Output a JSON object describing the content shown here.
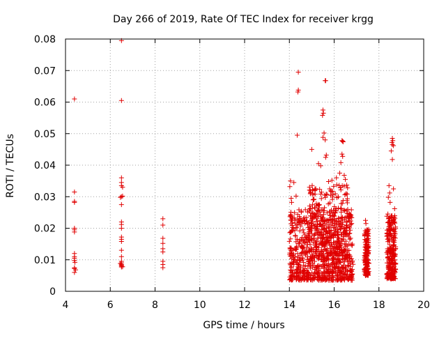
{
  "colors": {
    "points": "#e00000",
    "grid": "#a0a0a0",
    "axis": "#000000"
  },
  "chart_data": {
    "type": "scatter",
    "title": "Day 266 of 2019, Rate Of TEC Index for receiver krgg",
    "xlabel": "GPS time / hours",
    "ylabel": "ROTI / TECUs",
    "xlim": [
      4,
      20
    ],
    "ylim": [
      0,
      0.08
    ],
    "xticks": [
      4,
      6,
      8,
      10,
      12,
      14,
      16,
      18,
      20
    ],
    "xtick_labels": [
      "4",
      "6",
      "8",
      "10",
      "12",
      "14",
      "16",
      "18",
      "20"
    ],
    "yticks": [
      0,
      0.01,
      0.02,
      0.03,
      0.04,
      0.05,
      0.06,
      0.07,
      0.08
    ],
    "ytick_labels": [
      "0",
      "0.01",
      "0.02",
      "0.03",
      "0.04",
      "0.05",
      "0.06",
      "0.07",
      "0.08"
    ],
    "grid": true,
    "marker": "+",
    "series": [
      {
        "name": "ROTI",
        "points": [
          [
            4.4,
            0.061
          ],
          [
            4.4,
            0.0315
          ],
          [
            4.4,
            0.0285
          ],
          [
            4.4,
            0.0282
          ],
          [
            4.4,
            0.02
          ],
          [
            4.4,
            0.0195
          ],
          [
            4.4,
            0.0188
          ],
          [
            4.4,
            0.012
          ],
          [
            4.4,
            0.011
          ],
          [
            4.4,
            0.0105
          ],
          [
            4.4,
            0.0098
          ],
          [
            4.4,
            0.0075
          ],
          [
            4.4,
            0.0072
          ],
          [
            4.4,
            0.006
          ],
          [
            4.45,
            0.0068
          ],
          [
            4.42,
            0.0092
          ],
          [
            6.5,
            0.0795
          ],
          [
            6.5,
            0.0605
          ],
          [
            6.5,
            0.036
          ],
          [
            6.5,
            0.0345
          ],
          [
            6.5,
            0.0335
          ],
          [
            6.55,
            0.033
          ],
          [
            6.5,
            0.03
          ],
          [
            6.45,
            0.0298
          ],
          [
            6.55,
            0.0302
          ],
          [
            6.5,
            0.0275
          ],
          [
            6.5,
            0.022
          ],
          [
            6.5,
            0.0212
          ],
          [
            6.5,
            0.02
          ],
          [
            6.5,
            0.0172
          ],
          [
            6.5,
            0.0165
          ],
          [
            6.5,
            0.0158
          ],
          [
            6.5,
            0.013
          ],
          [
            6.5,
            0.011
          ],
          [
            6.5,
            0.0095
          ],
          [
            6.5,
            0.009
          ],
          [
            6.5,
            0.0085
          ],
          [
            6.5,
            0.0082
          ],
          [
            6.5,
            0.008
          ],
          [
            6.5,
            0.0077
          ],
          [
            6.45,
            0.0088
          ],
          [
            6.55,
            0.0078
          ],
          [
            8.35,
            0.023
          ],
          [
            8.35,
            0.021
          ],
          [
            8.35,
            0.0168
          ],
          [
            8.35,
            0.0152
          ],
          [
            8.35,
            0.0135
          ],
          [
            8.35,
            0.0125
          ],
          [
            8.35,
            0.0095
          ],
          [
            8.35,
            0.0085
          ],
          [
            8.35,
            0.0075
          ],
          [
            14.4,
            0.0695
          ],
          [
            14.4,
            0.0638
          ],
          [
            14.38,
            0.0632
          ],
          [
            14.35,
            0.0495
          ],
          [
            15.6,
            0.0668
          ],
          [
            15.62,
            0.0668
          ],
          [
            15.5,
            0.0575
          ],
          [
            15.52,
            0.0565
          ],
          [
            15.48,
            0.0558
          ],
          [
            15.55,
            0.0502
          ],
          [
            15.5,
            0.0488
          ],
          [
            15.6,
            0.048
          ],
          [
            15.65,
            0.0432
          ],
          [
            15.62,
            0.0425
          ],
          [
            15.0,
            0.045
          ],
          [
            15.3,
            0.0405
          ],
          [
            15.4,
            0.0398
          ],
          [
            16.35,
            0.0478
          ],
          [
            16.38,
            0.0476
          ],
          [
            16.4,
            0.0474
          ],
          [
            16.35,
            0.0435
          ],
          [
            16.38,
            0.0428
          ],
          [
            16.3,
            0.0408
          ],
          [
            16.25,
            0.0375
          ],
          [
            16.45,
            0.0368
          ],
          [
            16.5,
            0.0355
          ],
          [
            16.6,
            0.0328
          ],
          [
            16.1,
            0.036
          ],
          [
            15.9,
            0.0352
          ],
          [
            15.75,
            0.0348
          ],
          [
            15.8,
            0.0325
          ],
          [
            14.2,
            0.0345
          ],
          [
            14.05,
            0.035
          ],
          [
            14.02,
            0.0332
          ],
          [
            14.08,
            0.0295
          ],
          [
            14.1,
            0.0282
          ],
          [
            14.05,
            0.024
          ],
          [
            14.15,
            0.0232
          ],
          [
            14.25,
            0.0225
          ],
          [
            14.3,
            0.0302
          ],
          [
            14.9,
            0.033
          ],
          [
            14.95,
            0.0315
          ],
          [
            15.05,
            0.031
          ],
          [
            15.1,
            0.0292
          ],
          [
            15.2,
            0.0278
          ],
          [
            15.15,
            0.0265
          ],
          [
            17.4,
            0.0225
          ],
          [
            17.42,
            0.0215
          ],
          [
            17.45,
            0.0195
          ],
          [
            17.48,
            0.0188
          ],
          [
            17.5,
            0.0175
          ],
          [
            17.45,
            0.0158
          ],
          [
            17.4,
            0.0148
          ],
          [
            17.5,
            0.0138
          ],
          [
            17.38,
            0.0122
          ],
          [
            17.44,
            0.0112
          ],
          [
            17.36,
            0.0098
          ],
          [
            17.5,
            0.0092
          ],
          [
            17.46,
            0.0085
          ],
          [
            17.4,
            0.0072
          ],
          [
            17.42,
            0.0065
          ],
          [
            17.5,
            0.0058
          ],
          [
            17.45,
            0.0052
          ],
          [
            18.6,
            0.0485
          ],
          [
            18.62,
            0.0478
          ],
          [
            18.58,
            0.0472
          ],
          [
            18.6,
            0.0465
          ],
          [
            18.65,
            0.0462
          ],
          [
            18.55,
            0.0445
          ],
          [
            18.6,
            0.0418
          ],
          [
            18.45,
            0.0335
          ],
          [
            18.48,
            0.0312
          ],
          [
            18.65,
            0.0325
          ],
          [
            18.42,
            0.0298
          ],
          [
            18.5,
            0.0282
          ],
          [
            18.7,
            0.0262
          ],
          [
            18.4,
            0.0245
          ],
          [
            18.55,
            0.0232
          ],
          [
            18.62,
            0.0218
          ],
          [
            18.45,
            0.0205
          ],
          [
            18.68,
            0.0195
          ],
          [
            18.5,
            0.0182
          ],
          [
            18.58,
            0.0172
          ],
          [
            18.42,
            0.0165
          ],
          [
            18.65,
            0.0155
          ],
          [
            18.48,
            0.0148
          ],
          [
            18.55,
            0.0138
          ],
          [
            18.6,
            0.0132
          ],
          [
            18.45,
            0.0125
          ],
          [
            18.52,
            0.0118
          ],
          [
            18.7,
            0.0112
          ],
          [
            18.42,
            0.0105
          ],
          [
            18.6,
            0.0098
          ],
          [
            18.5,
            0.0092
          ],
          [
            18.66,
            0.0085
          ],
          [
            18.44,
            0.0078
          ],
          [
            18.56,
            0.0072
          ],
          [
            18.62,
            0.0065
          ],
          [
            18.48,
            0.0058
          ],
          [
            18.58,
            0.0052
          ],
          [
            18.5,
            0.0045
          ],
          [
            18.64,
            0.004
          ],
          [
            18.54,
            0.0038
          ]
        ],
        "dense_clusters": [
          {
            "xrange": [
              14.0,
              16.85
            ],
            "yrange": [
              0.0035,
              0.026
            ],
            "count": 850
          },
          {
            "xrange": [
              14.9,
              16.6
            ],
            "yrange": [
              0.01,
              0.034
            ],
            "count": 240
          },
          {
            "xrange": [
              17.35,
              17.55
            ],
            "yrange": [
              0.005,
              0.02
            ],
            "count": 120
          },
          {
            "xrange": [
              18.35,
              18.75
            ],
            "yrange": [
              0.004,
              0.024
            ],
            "count": 230
          }
        ]
      }
    ]
  }
}
